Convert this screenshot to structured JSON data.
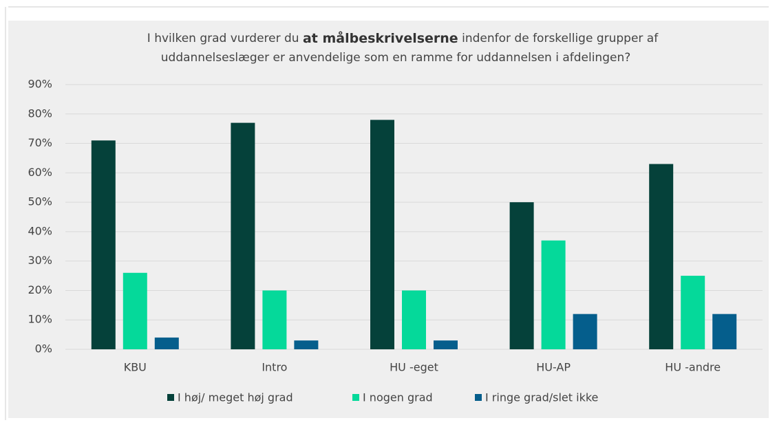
{
  "chart_data": {
    "type": "bar",
    "title_parts": [
      "I hvilken grad vurderer du",
      "at målbeskrivelserne",
      "indenfor de forskellige grupper af",
      "uddannelseslæger er anvendelige som en ramme for uddannelsen i afdelingen?"
    ],
    "categories": [
      "KBU",
      "Intro",
      "HU -eget",
      "HU-AP",
      "HU -andre"
    ],
    "series": [
      {
        "name": "I høj/ meget høj grad",
        "color": "#05413a",
        "values": [
          71,
          77,
          78,
          50,
          63
        ]
      },
      {
        "name": "I nogen grad",
        "color": "#05d99a",
        "values": [
          26,
          20,
          20,
          37,
          25
        ]
      },
      {
        "name": "I ringe grad/slet ikke",
        "color": "#055e8c",
        "values": [
          4,
          3,
          3,
          12,
          12
        ]
      }
    ],
    "ylim": [
      0,
      90
    ],
    "yticks": [
      {
        "value": 0,
        "label": "0%"
      },
      {
        "value": 10,
        "label": "10%"
      },
      {
        "value": 20,
        "label": "20%"
      },
      {
        "value": 30,
        "label": "30%"
      },
      {
        "value": 40,
        "label": "40%"
      },
      {
        "value": 50,
        "label": "50%"
      },
      {
        "value": 60,
        "label": "60%"
      },
      {
        "value": 70,
        "label": "70%"
      },
      {
        "value": 80,
        "label": "80%"
      },
      {
        "value": 90,
        "label": "90%"
      }
    ],
    "grid": true,
    "legend": "bottom"
  }
}
